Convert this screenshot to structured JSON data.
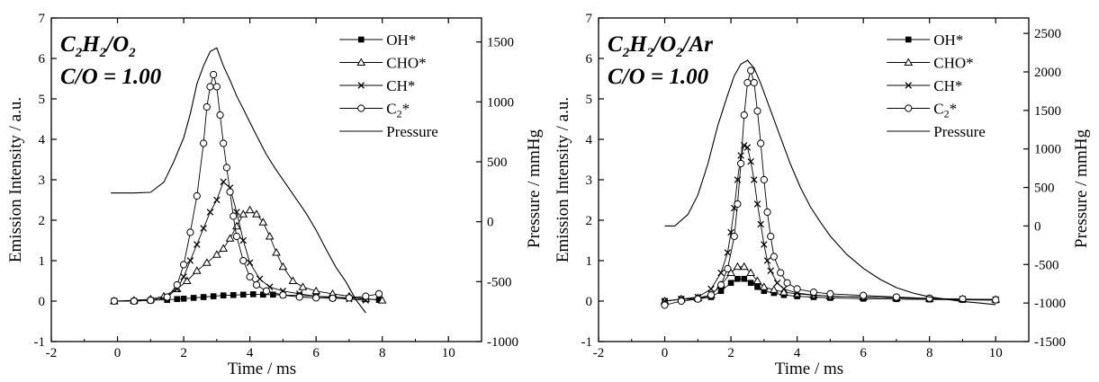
{
  "chart_data": [
    {
      "type": "line",
      "title": "",
      "inset_label_mixture": "C2H2/O2",
      "inset_label_mixture_parts": [
        {
          "t": "C",
          "sub": false
        },
        {
          "t": "2",
          "sub": true
        },
        {
          "t": "H",
          "sub": false
        },
        {
          "t": "2",
          "sub": true
        },
        {
          "t": "/O",
          "sub": false
        },
        {
          "t": "2",
          "sub": true
        }
      ],
      "inset_label_ratio": "C/O = 1.00",
      "xlabel": "Time  /  ms",
      "ylabel": "Emission Intensity / a.u.",
      "y2label": "Pressure / mmHg",
      "xlim": [
        -2,
        11
      ],
      "ylim": [
        -1,
        7
      ],
      "y2lim": [
        -1000,
        1700
      ],
      "x_ticks": [
        "-2",
        "0",
        "2",
        "4",
        "6",
        "8",
        "10"
      ],
      "y_ticks": [
        "-1",
        "0",
        "1",
        "2",
        "3",
        "4",
        "5",
        "6",
        "7"
      ],
      "y2_ticks": [
        "-1000",
        "-500",
        "0",
        "500",
        "1000",
        "1500"
      ],
      "legend_position": "top-right",
      "legend": [
        {
          "name": "OH*",
          "marker": "filled-square"
        },
        {
          "name": "CHO*",
          "marker": "open-triangle"
        },
        {
          "name": "CH*",
          "marker": "cross"
        },
        {
          "name": "C2*",
          "marker": "open-circle"
        },
        {
          "name": "Pressure",
          "marker": "line"
        }
      ],
      "series": [
        {
          "name": "OH*",
          "marker": "filled-square",
          "axis": "left",
          "x": [
            -0.1,
            0.5,
            1.0,
            1.5,
            1.8,
            2.0,
            2.3,
            2.6,
            2.9,
            3.2,
            3.5,
            3.8,
            4.1,
            4.4,
            4.7,
            5.0,
            5.5,
            6.0,
            6.5,
            7.0,
            7.5,
            7.9
          ],
          "y": [
            0.0,
            0.0,
            0.02,
            0.03,
            0.05,
            0.06,
            0.08,
            0.1,
            0.12,
            0.14,
            0.15,
            0.16,
            0.17,
            0.16,
            0.16,
            0.15,
            0.14,
            0.12,
            0.1,
            0.08,
            0.05,
            0.03
          ]
        },
        {
          "name": "CHO*",
          "marker": "open-triangle",
          "axis": "left",
          "x": [
            -0.1,
            0.5,
            1.0,
            1.4,
            1.8,
            2.1,
            2.4,
            2.7,
            3.0,
            3.2,
            3.4,
            3.6,
            3.8,
            4.0,
            4.2,
            4.4,
            4.6,
            4.8,
            5.0,
            5.3,
            5.6,
            6.0,
            6.5,
            7.0,
            7.5,
            8.0
          ],
          "y": [
            0.0,
            0.02,
            0.05,
            0.12,
            0.3,
            0.5,
            0.75,
            0.95,
            1.15,
            1.3,
            1.55,
            1.85,
            2.15,
            2.25,
            2.15,
            1.95,
            1.6,
            1.2,
            0.85,
            0.5,
            0.35,
            0.25,
            0.18,
            0.12,
            0.06,
            0.02
          ]
        },
        {
          "name": "CH*",
          "marker": "cross",
          "axis": "left",
          "x": [
            -0.1,
            0.5,
            1.0,
            1.5,
            1.8,
            2.0,
            2.2,
            2.4,
            2.6,
            2.8,
            3.0,
            3.2,
            3.4,
            3.6,
            3.8,
            4.0,
            4.3,
            4.6,
            5.0,
            5.5,
            6.0,
            6.5,
            7.0,
            7.5
          ],
          "y": [
            0.0,
            0.0,
            0.02,
            0.1,
            0.3,
            0.6,
            1.0,
            1.4,
            1.8,
            2.2,
            2.5,
            2.95,
            2.8,
            2.2,
            1.5,
            0.95,
            0.55,
            0.35,
            0.25,
            0.18,
            0.12,
            0.08,
            0.05,
            0.02
          ]
        },
        {
          "name": "C2*",
          "marker": "open-circle",
          "axis": "left",
          "x": [
            -0.1,
            0.5,
            1.0,
            1.5,
            1.8,
            2.0,
            2.2,
            2.4,
            2.6,
            2.7,
            2.8,
            2.9,
            3.0,
            3.1,
            3.2,
            3.3,
            3.4,
            3.5,
            3.6,
            3.8,
            4.0,
            4.2,
            4.5,
            5.0,
            5.5,
            6.0,
            6.5,
            7.0,
            7.5,
            7.9
          ],
          "y": [
            0.0,
            0.0,
            0.02,
            0.1,
            0.4,
            0.9,
            1.7,
            2.6,
            3.9,
            4.8,
            5.3,
            5.6,
            5.3,
            4.6,
            3.9,
            3.3,
            2.7,
            2.1,
            1.6,
            1.0,
            0.6,
            0.4,
            0.25,
            0.15,
            0.1,
            0.08,
            0.07,
            0.08,
            0.12,
            0.18
          ]
        },
        {
          "name": "Pressure",
          "marker": "line",
          "axis": "right",
          "x": [
            -0.2,
            0.0,
            0.5,
            1.0,
            1.4,
            1.7,
            2.0,
            2.2,
            2.4,
            2.6,
            2.8,
            3.0,
            3.2,
            3.4,
            3.6,
            3.8,
            4.0,
            4.2,
            4.5,
            4.8,
            5.1,
            5.4,
            5.7,
            6.0,
            6.3,
            6.6,
            6.9,
            7.2,
            7.5
          ],
          "y": [
            240,
            240,
            240,
            245,
            330,
            500,
            700,
            900,
            1150,
            1300,
            1420,
            1450,
            1300,
            1180,
            1050,
            940,
            830,
            720,
            560,
            430,
            310,
            190,
            70,
            -70,
            -230,
            -380,
            -500,
            -650,
            -760
          ]
        }
      ]
    },
    {
      "type": "line",
      "title": "",
      "inset_label_mixture": "C2H2/O2/Ar",
      "inset_label_mixture_parts": [
        {
          "t": "C",
          "sub": false
        },
        {
          "t": "2",
          "sub": true
        },
        {
          "t": "H",
          "sub": false
        },
        {
          "t": "2",
          "sub": true
        },
        {
          "t": "/O",
          "sub": false
        },
        {
          "t": "2",
          "sub": true
        },
        {
          "t": "/Ar",
          "sub": false
        }
      ],
      "inset_label_ratio": "C/O = 1.00",
      "xlabel": "Time  /  ms",
      "ylabel": "Emission Intensity / a.u.",
      "y2label": "Pressure / mmHg",
      "xlim": [
        -2,
        11
      ],
      "ylim": [
        -1,
        7
      ],
      "y2lim": [
        -1500,
        2700
      ],
      "x_ticks": [
        "-2",
        "0",
        "2",
        "4",
        "6",
        "8",
        "10"
      ],
      "y_ticks": [
        "-1",
        "0",
        "1",
        "2",
        "3",
        "4",
        "5",
        "6",
        "7"
      ],
      "y2_ticks": [
        "-1500",
        "-1000",
        "-500",
        "0",
        "500",
        "1000",
        "1500",
        "2000",
        "2500"
      ],
      "legend_position": "top-right",
      "legend": [
        {
          "name": "OH*",
          "marker": "filled-square"
        },
        {
          "name": "CHO*",
          "marker": "open-triangle"
        },
        {
          "name": "CH*",
          "marker": "cross"
        },
        {
          "name": "C2*",
          "marker": "open-circle"
        },
        {
          "name": "Pressure",
          "marker": "line"
        }
      ],
      "series": [
        {
          "name": "OH*",
          "marker": "filled-square",
          "axis": "left",
          "x": [
            0.0,
            0.5,
            1.0,
            1.4,
            1.7,
            2.0,
            2.2,
            2.4,
            2.6,
            2.8,
            3.0,
            3.3,
            3.6,
            4.0,
            4.5,
            5.0,
            6.0,
            7.0,
            8.0,
            9.0,
            10.0
          ],
          "y": [
            0.0,
            0.05,
            0.05,
            0.1,
            0.25,
            0.45,
            0.55,
            0.55,
            0.45,
            0.35,
            0.25,
            0.2,
            0.15,
            0.12,
            0.1,
            0.08,
            0.06,
            0.05,
            0.04,
            0.03,
            0.02
          ]
        },
        {
          "name": "CHO*",
          "marker": "open-triangle",
          "axis": "left",
          "x": [
            0.0,
            0.5,
            1.0,
            1.4,
            1.7,
            2.0,
            2.2,
            2.4,
            2.6,
            2.8,
            3.0,
            3.3,
            3.6,
            4.0,
            4.5,
            5.0,
            6.0,
            7.0,
            8.0,
            9.0,
            10.0
          ],
          "y": [
            0.0,
            0.05,
            0.08,
            0.15,
            0.4,
            0.7,
            0.85,
            0.85,
            0.7,
            0.5,
            0.35,
            0.28,
            0.22,
            0.18,
            0.15,
            0.12,
            0.1,
            0.08,
            0.06,
            0.05,
            0.04
          ]
        },
        {
          "name": "CH*",
          "marker": "cross",
          "axis": "left",
          "x": [
            0.0,
            0.5,
            1.0,
            1.4,
            1.7,
            1.9,
            2.0,
            2.1,
            2.2,
            2.3,
            2.4,
            2.5,
            2.6,
            2.7,
            2.8,
            2.9,
            3.0,
            3.1,
            3.2,
            3.4,
            3.6,
            4.0,
            4.5,
            5.0,
            6.0,
            7.0,
            8.0,
            9.0,
            10.0
          ],
          "y": [
            0.0,
            0.05,
            0.1,
            0.3,
            0.7,
            1.2,
            1.7,
            2.3,
            3.0,
            3.6,
            3.85,
            3.8,
            3.45,
            3.0,
            2.4,
            1.9,
            1.4,
            1.0,
            0.75,
            0.45,
            0.3,
            0.2,
            0.15,
            0.12,
            0.1,
            0.08,
            0.06,
            0.05,
            0.04
          ]
        },
        {
          "name": "C2*",
          "marker": "open-circle",
          "axis": "left",
          "x": [
            0.0,
            0.5,
            1.0,
            1.4,
            1.7,
            1.9,
            2.1,
            2.2,
            2.3,
            2.4,
            2.5,
            2.6,
            2.7,
            2.8,
            2.9,
            3.0,
            3.1,
            3.2,
            3.3,
            3.5,
            3.7,
            4.0,
            4.5,
            5.0,
            6.0,
            7.0,
            8.0,
            9.0,
            10.0
          ],
          "y": [
            -0.1,
            0.0,
            0.05,
            0.15,
            0.4,
            0.8,
            1.6,
            2.4,
            3.4,
            4.6,
            5.4,
            5.7,
            5.4,
            4.7,
            3.9,
            3.0,
            2.2,
            1.6,
            1.1,
            0.7,
            0.45,
            0.3,
            0.22,
            0.18,
            0.14,
            0.1,
            0.07,
            0.05,
            0.03
          ]
        },
        {
          "name": "Pressure",
          "marker": "line",
          "axis": "right",
          "x": [
            0.0,
            0.3,
            0.7,
            1.0,
            1.3,
            1.6,
            1.9,
            2.1,
            2.3,
            2.5,
            2.7,
            2.9,
            3.2,
            3.5,
            3.8,
            4.1,
            4.4,
            4.7,
            5.0,
            5.5,
            6.0,
            6.5,
            7.0,
            7.5,
            8.0,
            8.5,
            9.0,
            9.5,
            10.0
          ],
          "y": [
            0,
            0,
            150,
            400,
            800,
            1300,
            1700,
            1950,
            2100,
            2150,
            2050,
            1850,
            1500,
            1150,
            800,
            500,
            250,
            50,
            -130,
            -370,
            -550,
            -690,
            -800,
            -870,
            -920,
            -950,
            -980,
            -1000,
            -1020
          ]
        }
      ]
    }
  ]
}
